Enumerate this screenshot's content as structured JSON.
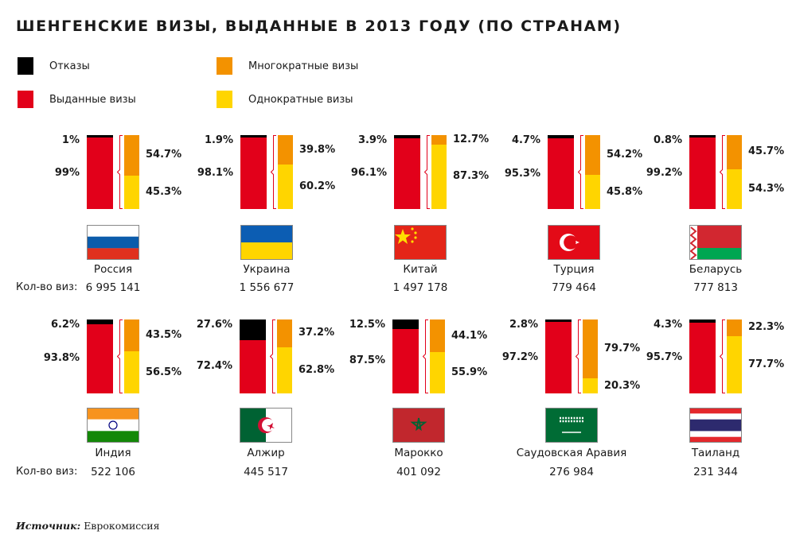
{
  "title": "ШЕНГЕНСКИЕ ВИЗЫ, ВЫДАННЫЕ В 2013 ГОДУ (ПО СТРАНАМ)",
  "colors": {
    "refusals": "#000000",
    "issued": "#e2001a",
    "multiple": "#f39200",
    "single": "#ffd500"
  },
  "legend": [
    {
      "label": "Отказы",
      "color": "#000000"
    },
    {
      "label": "Выданные визы",
      "color": "#e2001a"
    },
    {
      "label": "Многократные визы",
      "color": "#f39200"
    },
    {
      "label": "Однократные визы",
      "color": "#ffd500"
    }
  ],
  "count_label": "Кол-во виз:",
  "source_label": "Источник:",
  "source": "Еврокомиссия",
  "chart_data": {
    "type": "bar",
    "subtype": "stacked-100-percent",
    "categories": [
      "Россия",
      "Украина",
      "Китай",
      "Турция",
      "Беларусь",
      "Индия",
      "Алжир",
      "Марокко",
      "Саудовская Аравия",
      "Таиланд"
    ],
    "series": [
      {
        "name": "Отказы",
        "values": [
          1,
          1.9,
          3.9,
          4.7,
          0.8,
          6.2,
          27.6,
          12.5,
          2.8,
          4.3
        ]
      },
      {
        "name": "Выданные визы",
        "values": [
          99,
          98.1,
          96.1,
          95.3,
          99.2,
          93.8,
          72.4,
          87.5,
          97.2,
          95.7
        ]
      },
      {
        "name": "Многократные визы",
        "values": [
          54.7,
          39.8,
          12.7,
          54.2,
          45.7,
          43.5,
          37.2,
          44.1,
          79.7,
          22.3
        ]
      },
      {
        "name": "Однократные визы",
        "values": [
          45.3,
          60.2,
          87.3,
          45.8,
          54.3,
          56.5,
          62.8,
          55.9,
          20.3,
          77.7
        ]
      }
    ],
    "labels": {
      "refused": [
        "1%",
        "1.9%",
        "3.9%",
        "4.7%",
        "0.8%",
        "6.2%",
        "27.6%",
        "12.5%",
        "2.8%",
        "4.3%"
      ],
      "issued": [
        "99%",
        "98.1%",
        "96.1%",
        "95.3%",
        "99.2%",
        "93.8%",
        "72.4%",
        "87.5%",
        "97.2%",
        "95.7%"
      ],
      "multiple": [
        "54.7%",
        "39.8%",
        "12.7%",
        "54.2%",
        "45.7%",
        "43.5%",
        "37.2%",
        "44.1%",
        "79.7%",
        "22.3%"
      ],
      "single": [
        "45.3%",
        "60.2%",
        "87.3%",
        "45.8%",
        "54.3%",
        "56.5%",
        "62.8%",
        "55.9%",
        "20.3%",
        "77.7%"
      ]
    },
    "counts": [
      "6 995 141",
      "1 556 677",
      "1 497 178",
      "779 464",
      "777 813",
      "522 106",
      "445 517",
      "401 092",
      "276 984",
      "231 344"
    ],
    "flags": [
      "russia-flag",
      "ukraine-flag",
      "china-flag",
      "turkey-flag",
      "belarus-flag",
      "india-flag",
      "algeria-flag",
      "morocco-flag",
      "saudi-arabia-flag",
      "thailand-flag"
    ],
    "ylim": [
      0,
      100
    ]
  }
}
